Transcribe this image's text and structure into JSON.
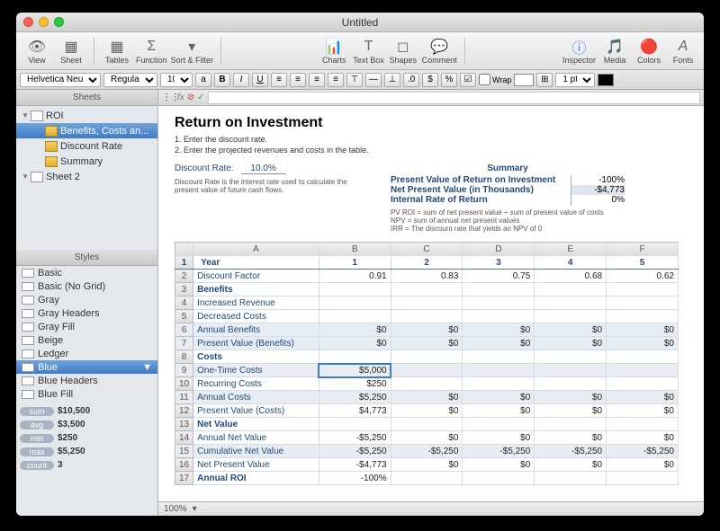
{
  "window": {
    "title": "Untitled"
  },
  "toolbar": {
    "view": "View",
    "sheet": "Sheet",
    "tables": "Tables",
    "function": "Function",
    "sortfilter": "Sort & Filter",
    "charts": "Charts",
    "textbox": "Text Box",
    "shapes": "Shapes",
    "comment": "Comment",
    "inspector": "Inspector",
    "media": "Media",
    "colors": "Colors",
    "fonts": "Fonts"
  },
  "fontbar": {
    "font": "Helvetica Neue",
    "weight": "Regular",
    "size": "10",
    "wrap_label": "Wrap",
    "pt_value": "1 pt"
  },
  "sidebar": {
    "sheets_label": "Sheets",
    "tree": [
      {
        "label": "ROI",
        "type": "doc",
        "indent": 0,
        "expanded": true
      },
      {
        "label": "Benefits, Costs an...",
        "type": "tbl",
        "indent": 1,
        "selected": true
      },
      {
        "label": "Discount Rate",
        "type": "tbl",
        "indent": 1
      },
      {
        "label": "Summary",
        "type": "tbl",
        "indent": 1
      },
      {
        "label": "Sheet 2",
        "type": "doc",
        "indent": 0,
        "expanded": true
      }
    ],
    "styles_label": "Styles",
    "styles": [
      "Basic",
      "Basic (No Grid)",
      "Gray",
      "Gray Headers",
      "Gray Fill",
      "Beige",
      "Ledger",
      "Blue",
      "Blue Headers",
      "Blue Fill"
    ],
    "selected_style": "Blue",
    "stats": [
      {
        "label": "sum",
        "value": "$10,500"
      },
      {
        "label": "avg",
        "value": "$3,500"
      },
      {
        "label": "min",
        "value": "$250"
      },
      {
        "label": "max",
        "value": "$5,250"
      },
      {
        "label": "count",
        "value": "3"
      }
    ]
  },
  "fx": {
    "label": "fx"
  },
  "doc": {
    "title": "Return on Investment",
    "instr1": "1.  Enter the discount rate.",
    "instr2": "2.  Enter the projected revenues and costs in the table.",
    "discount_rate_label": "Discount Rate:",
    "discount_rate_value": "10.0%",
    "discount_note": "Discount Rate is the interest rate used to calculate the present value of future cash flows.",
    "summary_title": "Summary",
    "summary": [
      {
        "k": "Present Value of Return on Investment",
        "v": "-100%"
      },
      {
        "k": "Net Present Value (in Thousands)",
        "v": "-$4,773",
        "hl": true
      },
      {
        "k": "Internal Rate of Return",
        "v": "0%"
      }
    ],
    "formulas": [
      "PV ROI = sum of net present value ÷ sum of present value of costs",
      "NPV = sum of annual net present values",
      "IRR = The discount rate that yields an NPV of 0"
    ]
  },
  "table": {
    "columns": [
      "",
      "A",
      "B",
      "C",
      "D",
      "E",
      "F"
    ],
    "col_widths": [
      "18px",
      "140px",
      "80px",
      "80px",
      "80px",
      "80px",
      "80px"
    ],
    "header_row": [
      "Year",
      "1",
      "2",
      "3",
      "4",
      "5"
    ],
    "rows": [
      {
        "n": 2,
        "label": "Discount Factor",
        "vals": [
          "0.91",
          "0.83",
          "0.75",
          "0.68",
          "0.62"
        ]
      },
      {
        "n": 3,
        "label": "Benefits",
        "bold": true,
        "vals": [
          "",
          "",
          "",
          "",
          ""
        ]
      },
      {
        "n": 4,
        "label": "Increased Revenue",
        "vals": [
          "",
          "",
          "",
          "",
          ""
        ]
      },
      {
        "n": 5,
        "label": "Decreased Costs",
        "vals": [
          "",
          "",
          "",
          "",
          ""
        ]
      },
      {
        "n": 6,
        "label": "Annual Benefits",
        "shaded": true,
        "vals": [
          "$0",
          "$0",
          "$0",
          "$0",
          "$0"
        ]
      },
      {
        "n": 7,
        "label": "Present Value (Benefits)",
        "shaded": true,
        "vals": [
          "$0",
          "$0",
          "$0",
          "$0",
          "$0"
        ]
      },
      {
        "n": 8,
        "label": "Costs",
        "bold": true,
        "vals": [
          "",
          "",
          "",
          "",
          ""
        ]
      },
      {
        "n": 9,
        "label": "One-Time Costs",
        "shaded": true,
        "vals": [
          "$5,000",
          "",
          "",
          "",
          ""
        ],
        "selcol": 0
      },
      {
        "n": 10,
        "label": "Recurring Costs",
        "vals": [
          "$250",
          "",
          "",
          "",
          ""
        ]
      },
      {
        "n": 11,
        "label": "Annual Costs",
        "shaded": true,
        "vals": [
          "$5,250",
          "$0",
          "$0",
          "$0",
          "$0"
        ]
      },
      {
        "n": 12,
        "label": "Present Value (Costs)",
        "vals": [
          "$4,773",
          "$0",
          "$0",
          "$0",
          "$0"
        ]
      },
      {
        "n": 13,
        "label": "Net Value",
        "bold": true,
        "vals": [
          "",
          "",
          "",
          "",
          ""
        ]
      },
      {
        "n": 14,
        "label": "Annual Net Value",
        "vals": [
          "-$5,250",
          "$0",
          "$0",
          "$0",
          "$0"
        ]
      },
      {
        "n": 15,
        "label": "Cumulative Net Value",
        "shaded": true,
        "vals": [
          "-$5,250",
          "-$5,250",
          "-$5,250",
          "-$5,250",
          "-$5,250"
        ]
      },
      {
        "n": 16,
        "label": "Net Present Value",
        "vals": [
          "-$4,773",
          "$0",
          "$0",
          "$0",
          "$0"
        ]
      },
      {
        "n": 17,
        "label": "Annual ROI",
        "bold": true,
        "vals": [
          "-100%",
          "",
          "",
          "",
          ""
        ]
      }
    ]
  },
  "status": {
    "zoom": "100%"
  },
  "colors": {
    "label": "#1e4a7a",
    "shaded_row": "#e8edf3",
    "border": "#d4dce6",
    "header_border": "#5a7a9a",
    "selection": "#3e7bc4"
  }
}
